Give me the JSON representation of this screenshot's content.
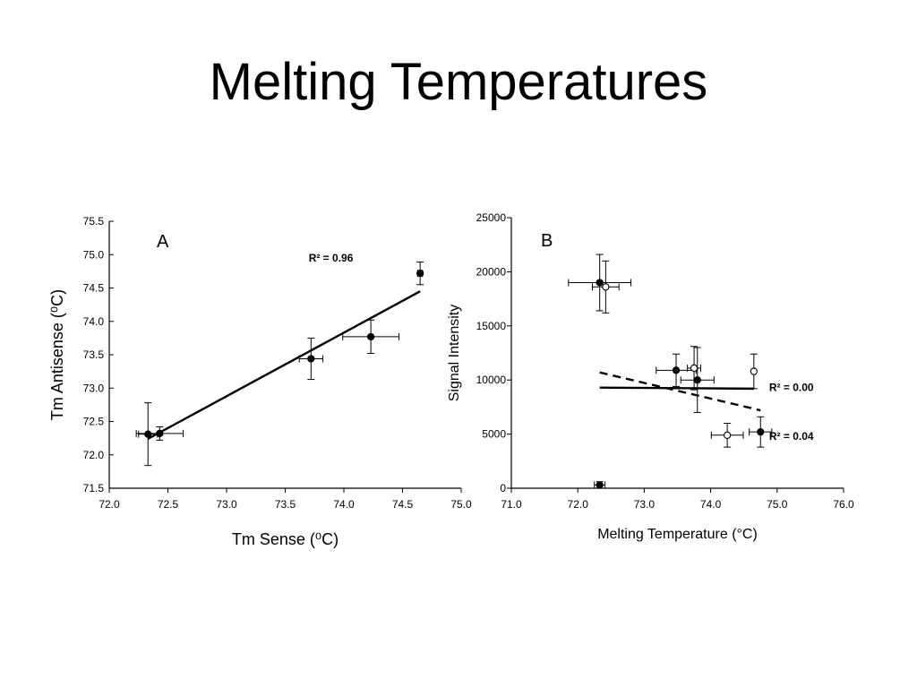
{
  "title": "Melting Temperatures",
  "chart_data": [
    {
      "type": "scatter",
      "panel_label": "A",
      "xlabel": "Tm Sense (⁰C)",
      "ylabel": "Tm Antisense (⁰C)",
      "xlim": [
        72.0,
        75.0
      ],
      "ylim": [
        71.5,
        75.5
      ],
      "xticks": [
        "72.0",
        "72.5",
        "73.0",
        "73.5",
        "74.0",
        "74.5",
        "75.0"
      ],
      "yticks": [
        "71.5",
        "72.0",
        "72.5",
        "73.0",
        "73.5",
        "74.0",
        "74.5",
        "75.0",
        "75.5"
      ],
      "series": [
        {
          "marker": "filled",
          "points": [
            {
              "x": 72.33,
              "y": 72.31,
              "xerr": 0.08,
              "yerr": 0.47
            },
            {
              "x": 72.43,
              "y": 72.32,
              "xerr": 0.2,
              "yerr": 0.1
            },
            {
              "x": 73.72,
              "y": 73.44,
              "xerr": 0.1,
              "yerr": 0.31
            },
            {
              "x": 74.23,
              "y": 73.77,
              "xerr": 0.24,
              "yerr": 0.25
            },
            {
              "x": 74.65,
              "y": 74.72,
              "xerr": 0.02,
              "yerr": 0.17
            }
          ]
        }
      ],
      "fit_line": {
        "x": [
          72.33,
          74.65
        ],
        "y": [
          72.24,
          74.45
        ]
      },
      "annotation": {
        "text": "R² = 0.96",
        "x": 73.7,
        "y": 74.95
      }
    },
    {
      "type": "scatter",
      "panel_label": "B",
      "xlabel": "Melting Temperature (°C)",
      "ylabel": "Signal Intensity",
      "xlim": [
        71.0,
        76.0
      ],
      "ylim": [
        0,
        25000
      ],
      "xticks": [
        "71.0",
        "72.0",
        "73.0",
        "74.0",
        "75.0",
        "76.0"
      ],
      "yticks": [
        "0",
        "5000",
        "10000",
        "15000",
        "20000",
        "25000"
      ],
      "series": [
        {
          "marker": "filled",
          "points": [
            {
              "x": 72.33,
              "y": 19000,
              "xerr": 0.47,
              "yerr": 2600
            },
            {
              "x": 72.33,
              "y": 300,
              "xerr": 0.08,
              "yerr": 300
            },
            {
              "x": 73.48,
              "y": 10900,
              "xerr": 0.3,
              "yerr": 1500
            },
            {
              "x": 73.8,
              "y": 10000,
              "xerr": 0.25,
              "yerr": 3000
            },
            {
              "x": 74.75,
              "y": 5200,
              "xerr": 0.17,
              "yerr": 1400
            }
          ]
        },
        {
          "marker": "open",
          "points": [
            {
              "x": 72.42,
              "y": 18600,
              "xerr": 0.2,
              "yerr": 2400
            },
            {
              "x": 73.75,
              "y": 11100,
              "xerr": 0.1,
              "yerr": 2000
            },
            {
              "x": 74.25,
              "y": 4900,
              "xerr": 0.24,
              "yerr": 1100
            },
            {
              "x": 74.65,
              "y": 10800,
              "xerr": 0.02,
              "yerr": 1600
            }
          ]
        }
      ],
      "fit_lines": [
        {
          "style": "solid",
          "x": [
            72.33,
            74.65
          ],
          "y": [
            9300,
            9200
          ]
        },
        {
          "style": "dashed",
          "x": [
            72.33,
            74.75
          ],
          "y": [
            10700,
            7200
          ]
        }
      ],
      "annotations": [
        {
          "text": "R² = 0.00",
          "x": 74.88,
          "y": 9300
        },
        {
          "text": "R² = 0.04",
          "x": 74.88,
          "y": 4800
        }
      ]
    }
  ]
}
